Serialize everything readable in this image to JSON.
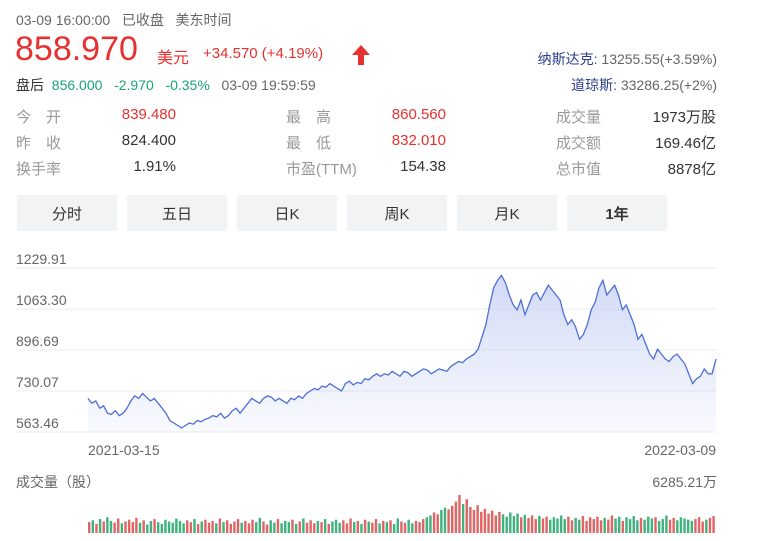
{
  "header": {
    "timestamp": "03-09 16:00:00",
    "status": "已收盘",
    "timezone": "美东时间",
    "price": "858.970",
    "currency": "美元",
    "change": "+34.570 (+4.19%)",
    "after_label": "盘后",
    "after_price": "856.000",
    "after_change": "-2.970",
    "after_pct": "-0.35%",
    "after_time": "03-09 19:59:59",
    "colors": {
      "up": "#e93030",
      "down": "#1aa37a",
      "index": "#2c3e8c"
    }
  },
  "indices": [
    {
      "name": "纳斯达克:",
      "value": "13255.55(+3.59%)"
    },
    {
      "name": "道琼斯:",
      "value": "33286.25(+2%)"
    }
  ],
  "stats": {
    "col1": [
      {
        "label": "今　开",
        "value": "839.480",
        "tone": "up"
      },
      {
        "label": "昨　收",
        "value": "824.400",
        "tone": "normal"
      },
      {
        "label": "换手率",
        "value": "1.91%",
        "tone": "normal"
      }
    ],
    "col2": [
      {
        "label": "最　高",
        "value": "860.560",
        "tone": "up"
      },
      {
        "label": "最　低",
        "value": "832.010",
        "tone": "up"
      },
      {
        "label": "市盈(TTM)",
        "value": "154.38",
        "tone": "normal"
      }
    ],
    "col3": [
      {
        "label": "成交量",
        "value": "1973万股"
      },
      {
        "label": "成交额",
        "value": "169.46亿"
      },
      {
        "label": "总市值",
        "value": "8878亿"
      }
    ]
  },
  "tabs": [
    {
      "label": "分时",
      "active": false
    },
    {
      "label": "五日",
      "active": false
    },
    {
      "label": "日K",
      "active": false
    },
    {
      "label": "周K",
      "active": false
    },
    {
      "label": "月K",
      "active": false
    },
    {
      "label": "1年",
      "active": true
    }
  ],
  "chart_data": {
    "type": "area",
    "y_ticks": [
      "1229.91",
      "1063.30",
      "896.69",
      "730.07",
      "563.46"
    ],
    "ylim": [
      563.46,
      1229.91
    ],
    "x_labels": [
      "2021-03-15",
      "2022-03-09"
    ],
    "line_color": "#4d6fd6",
    "fill_color": "#c9d3f4",
    "series": [
      {
        "values": [
          700,
          680,
          690,
          660,
          670,
          640,
          635,
          650,
          630,
          640,
          660,
          690,
          710,
          700,
          720,
          705,
          690,
          700,
          680,
          660,
          640,
          610,
          600,
          590,
          580,
          590,
          600,
          595,
          610,
          605,
          615,
          620,
          630,
          625,
          640,
          620,
          630,
          650,
          660,
          640,
          660,
          680,
          700,
          690,
          680,
          700,
          710,
          705,
          690,
          700,
          690,
          680,
          700,
          695,
          710,
          700,
          720,
          730,
          740,
          735,
          750,
          745,
          760,
          750,
          740,
          730,
          760,
          770,
          755,
          765,
          760,
          780,
          775,
          790,
          800,
          790,
          800,
          795,
          810,
          800,
          790,
          810,
          805,
          790,
          800,
          810,
          820,
          815,
          800,
          810,
          820,
          815,
          810,
          830,
          840,
          850,
          845,
          860,
          870,
          880,
          900,
          950,
          1000,
          1080,
          1150,
          1180,
          1200,
          1170,
          1120,
          1080,
          1060,
          1100,
          1040,
          1080,
          1120,
          1130,
          1100,
          1130,
          1160,
          1140,
          1120,
          1100,
          1040,
          1000,
          1020,
          990,
          940,
          960,
          1000,
          1060,
          1090,
          1150,
          1180,
          1120,
          1140,
          1160,
          1120,
          1060,
          1080,
          1040,
          1000,
          940,
          960,
          920,
          880,
          860,
          900,
          880,
          860,
          850,
          870,
          880,
          860,
          840,
          800,
          760,
          780,
          790,
          820,
          800,
          800,
          860
        ]
      }
    ]
  },
  "volume": {
    "label": "成交量（股）",
    "max_label": "6285.21万",
    "max_value": 6285.21,
    "colors": {
      "up": "#e06666",
      "down": "#3fb27f"
    },
    "values": [
      1800,
      2100,
      1500,
      2300,
      1900,
      2600,
      2000,
      1700,
      2400,
      1600,
      1900,
      2200,
      1800,
      2500,
      1700,
      2100,
      1400,
      2000,
      2300,
      1800,
      1500,
      2200,
      1900,
      1700,
      2400,
      2000,
      1600,
      2100,
      1800,
      2300,
      1500,
      1900,
      2200,
      1700,
      2000,
      1600,
      2400,
      1800,
      2100,
      1500,
      1900,
      2300,
      1700,
      2000,
      1600,
      2200,
      1800,
      2500,
      1900,
      1400,
      2100,
      1700,
      2300,
      1600,
      2000,
      1800,
      2200,
      1500,
      1900,
      2400,
      1700,
      2100,
      1600,
      2000,
      1800,
      2300,
      1500,
      1900,
      2200,
      1700,
      2100,
      1600,
      2400,
      1800,
      2000,
      1500,
      2200,
      1900,
      1700,
      2300,
      1600,
      2000,
      1800,
      2100,
      1500,
      2400,
      1900,
      1700,
      2200,
      1600,
      2000,
      1800,
      2300,
      2600,
      2900,
      3400,
      3100,
      3800,
      4200,
      3900,
      4500,
      5200,
      6285,
      4800,
      5600,
      4300,
      3800,
      4600,
      3500,
      4000,
      3200,
      3700,
      2900,
      3500,
      3100,
      2700,
      3400,
      2800,
      3200,
      2600,
      3000,
      2500,
      2900,
      2300,
      2800,
      2400,
      2700,
      2200,
      2600,
      2400,
      2900,
      2300,
      2700,
      2100,
      2500,
      2200,
      2800,
      2000,
      2600,
      2300,
      2700,
      2100,
      2500,
      2200,
      2900,
      2400,
      2700,
      2000,
      2600,
      2300,
      2800,
      2100,
      2500,
      2200,
      2700,
      2400,
      2600,
      2000,
      2300,
      2900,
      2200,
      2500,
      2100,
      2600,
      2400,
      2200,
      2000,
      2300,
      2600,
      1900,
      2200,
      2500,
      2800
    ]
  }
}
